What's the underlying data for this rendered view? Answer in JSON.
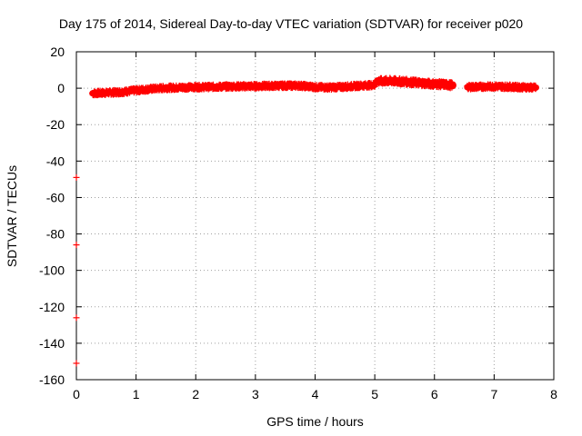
{
  "chart_data": {
    "type": "scatter",
    "title": "Day 175 of 2014, Sidereal Day-to-day VTEC variation (SDTVAR) for receiver p020",
    "xlabel": "GPS time / hours",
    "ylabel": "SDTVAR / TECUs",
    "xlim": [
      0,
      8
    ],
    "ylim": [
      -160,
      20
    ],
    "xticks": [
      0,
      1,
      2,
      3,
      4,
      5,
      6,
      7,
      8
    ],
    "yticks": [
      20,
      0,
      -20,
      -40,
      -60,
      -80,
      -100,
      -120,
      -140,
      -160
    ],
    "grid": true,
    "marker": "+",
    "color": "#ff0000",
    "series": [
      {
        "name": "SDTVAR",
        "outliers": [
          {
            "x": 0.0,
            "y": -49
          },
          {
            "x": 0.0,
            "y": -86
          },
          {
            "x": 0.0,
            "y": -126
          },
          {
            "x": 0.0,
            "y": -151
          }
        ],
        "segments": [
          {
            "x": [
              0.27,
              0.5,
              0.75,
              1.0,
              1.25,
              1.5,
              1.75,
              2.0,
              2.25,
              2.5,
              2.75,
              3.0,
              3.25,
              3.5,
              3.75,
              4.0,
              4.25,
              4.5,
              4.75,
              5.0
            ],
            "y": [
              -2.8,
              -2.5,
              -2.1,
              -1.2,
              -0.4,
              0.2,
              0.4,
              0.6,
              0.7,
              0.9,
              1.0,
              1.1,
              1.3,
              1.4,
              1.4,
              0.6,
              0.4,
              0.8,
              1.4,
              1.8
            ]
          },
          {
            "x": [
              5.05,
              5.25,
              5.5,
              5.75,
              6.0,
              6.15,
              6.3
            ],
            "y": [
              3.8,
              4.0,
              3.6,
              2.9,
              2.3,
              2.1,
              1.6
            ]
          },
          {
            "x": [
              6.55,
              6.75,
              7.0,
              7.25,
              7.5,
              7.7
            ],
            "y": [
              0.6,
              0.8,
              1.0,
              0.8,
              0.5,
              0.3
            ]
          }
        ]
      }
    ]
  }
}
